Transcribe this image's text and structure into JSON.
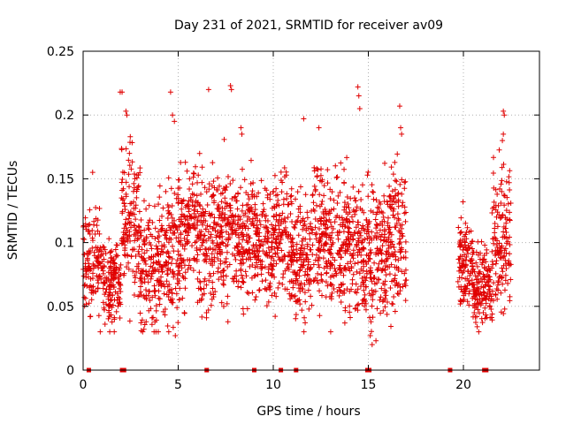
{
  "chart_data": {
    "type": "scatter",
    "title": "Day 231 of 2021, SRMTID for receiver av09",
    "xlabel": "GPS time / hours",
    "ylabel": "SRMTID / TECUs",
    "xlim": [
      0,
      24
    ],
    "ylim": [
      0,
      0.25
    ],
    "xticks": [
      0,
      5,
      10,
      15,
      20
    ],
    "xtick_labels": [
      "0",
      "5",
      "10",
      "15",
      "20"
    ],
    "yticks": [
      0,
      0.05,
      0.1,
      0.15,
      0.2,
      0.25
    ],
    "ytick_labels": [
      "0",
      "0.05",
      "0.1",
      "0.15",
      "0.2",
      "0.25"
    ],
    "grid": true,
    "marker": "+",
    "color": "#e00000",
    "series": [
      {
        "name": "SRMTID",
        "segments": [
          {
            "x_start": 0.0,
            "x_end": 1.0,
            "y_center": 0.085,
            "y_spread": 0.025,
            "density": 120
          },
          {
            "x_start": 1.0,
            "x_end": 2.0,
            "y_center": 0.07,
            "y_spread": 0.022,
            "density": 140
          },
          {
            "x_start": 2.0,
            "x_end": 3.0,
            "y_center": 0.115,
            "y_spread": 0.04,
            "density": 140
          },
          {
            "x_start": 3.0,
            "x_end": 4.0,
            "y_center": 0.08,
            "y_spread": 0.03,
            "density": 140
          },
          {
            "x_start": 4.0,
            "x_end": 5.0,
            "y_center": 0.09,
            "y_spread": 0.035,
            "density": 140
          },
          {
            "x_start": 5.0,
            "x_end": 6.0,
            "y_center": 0.105,
            "y_spread": 0.035,
            "density": 140
          },
          {
            "x_start": 6.0,
            "x_end": 7.0,
            "y_center": 0.1,
            "y_spread": 0.035,
            "density": 140
          },
          {
            "x_start": 7.0,
            "x_end": 8.0,
            "y_center": 0.11,
            "y_spread": 0.035,
            "density": 140
          },
          {
            "x_start": 8.0,
            "x_end": 9.0,
            "y_center": 0.105,
            "y_spread": 0.035,
            "density": 140
          },
          {
            "x_start": 9.0,
            "x_end": 10.0,
            "y_center": 0.1,
            "y_spread": 0.03,
            "density": 140
          },
          {
            "x_start": 10.0,
            "x_end": 11.0,
            "y_center": 0.105,
            "y_spread": 0.035,
            "density": 140
          },
          {
            "x_start": 11.0,
            "x_end": 12.0,
            "y_center": 0.09,
            "y_spread": 0.03,
            "density": 140
          },
          {
            "x_start": 12.0,
            "x_end": 13.0,
            "y_center": 0.105,
            "y_spread": 0.035,
            "density": 140
          },
          {
            "x_start": 13.0,
            "x_end": 14.0,
            "y_center": 0.1,
            "y_spread": 0.035,
            "density": 140
          },
          {
            "x_start": 14.0,
            "x_end": 15.0,
            "y_center": 0.095,
            "y_spread": 0.035,
            "density": 140
          },
          {
            "x_start": 15.0,
            "x_end": 16.0,
            "y_center": 0.09,
            "y_spread": 0.035,
            "density": 140
          },
          {
            "x_start": 16.0,
            "x_end": 17.0,
            "y_center": 0.105,
            "y_spread": 0.035,
            "density": 140
          },
          {
            "x_start": 19.7,
            "x_end": 20.5,
            "y_center": 0.085,
            "y_spread": 0.025,
            "density": 120
          },
          {
            "x_start": 20.5,
            "x_end": 21.5,
            "y_center": 0.065,
            "y_spread": 0.02,
            "density": 140
          },
          {
            "x_start": 21.5,
            "x_end": 22.5,
            "y_center": 0.1,
            "y_spread": 0.035,
            "density": 140
          }
        ],
        "outliers": [
          [
            0.5,
            0.155
          ],
          [
            1.95,
            0.218
          ],
          [
            2.05,
            0.218
          ],
          [
            2.25,
            0.203
          ],
          [
            2.3,
            0.2
          ],
          [
            4.6,
            0.218
          ],
          [
            4.7,
            0.2
          ],
          [
            4.8,
            0.195
          ],
          [
            6.6,
            0.22
          ],
          [
            7.75,
            0.223
          ],
          [
            7.8,
            0.22
          ],
          [
            8.3,
            0.19
          ],
          [
            8.35,
            0.185
          ],
          [
            11.6,
            0.197
          ],
          [
            12.4,
            0.19
          ],
          [
            14.45,
            0.222
          ],
          [
            14.5,
            0.215
          ],
          [
            14.55,
            0.205
          ],
          [
            16.65,
            0.207
          ],
          [
            16.7,
            0.19
          ],
          [
            16.75,
            0.185
          ],
          [
            22.1,
            0.203
          ],
          [
            22.15,
            0.2
          ],
          [
            22.1,
            0.185
          ],
          [
            22.05,
            0.18
          ],
          [
            15.1,
            0.027
          ],
          [
            15.2,
            0.02
          ],
          [
            15.4,
            0.023
          ],
          [
            4.85,
            0.027
          ],
          [
            1.4,
            0.03
          ],
          [
            0.9,
            0.03
          ]
        ],
        "zero_points": [
          0.3,
          2.05,
          2.15,
          6.5,
          9.0,
          10.4,
          11.2,
          14.95,
          15.05,
          19.3,
          21.1,
          21.2
        ]
      }
    ]
  }
}
